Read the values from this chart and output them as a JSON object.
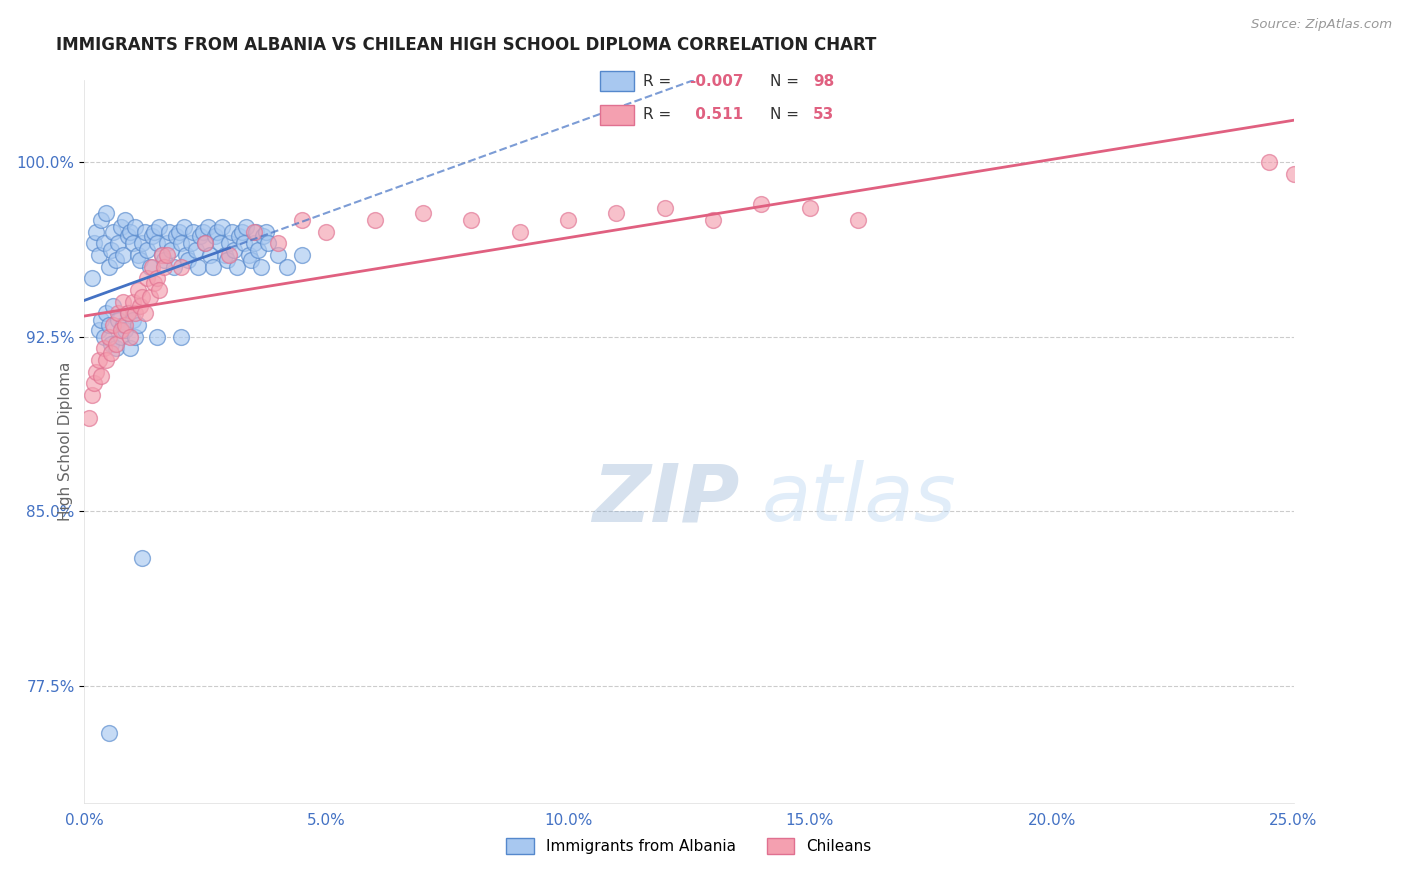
{
  "title": "IMMIGRANTS FROM ALBANIA VS CHILEAN HIGH SCHOOL DIPLOMA CORRELATION CHART",
  "source": "Source: ZipAtlas.com",
  "ylabel": "High School Diploma",
  "legend_label1": "Immigrants from Albania",
  "legend_label2": "Chileans",
  "r1": -0.007,
  "n1": 98,
  "r2": 0.511,
  "n2": 53,
  "xlim": [
    0.0,
    25.0
  ],
  "ylim": [
    72.5,
    103.5
  ],
  "xticks": [
    0.0,
    5.0,
    10.0,
    15.0,
    20.0,
    25.0
  ],
  "xtick_labels": [
    "0.0%",
    "5.0%",
    "10.0%",
    "15.0%",
    "20.0%",
    "25.0%"
  ],
  "yticks": [
    77.5,
    85.0,
    92.5,
    100.0
  ],
  "ytick_labels": [
    "77.5%",
    "85.0%",
    "92.5%",
    "100.0%"
  ],
  "color_albania": "#A8C8F0",
  "color_chilean": "#F4A0B0",
  "color_albania_edge": "#5588CC",
  "color_chilean_edge": "#E07090",
  "color_albania_line": "#4472C4",
  "color_chilean_line": "#E06080",
  "watermark_zip": "ZIP",
  "watermark_atlas": "atlas",
  "background_color": "#FFFFFF",
  "grid_color": "#CCCCCC",
  "title_color": "#222222",
  "axis_label_color": "#666666",
  "tick_color_blue": "#4472C4",
  "legend_r_color": "#E06080",
  "albania_x": [
    0.15,
    0.2,
    0.25,
    0.3,
    0.35,
    0.4,
    0.45,
    0.5,
    0.55,
    0.6,
    0.65,
    0.7,
    0.75,
    0.8,
    0.85,
    0.9,
    0.95,
    1.0,
    1.05,
    1.1,
    1.15,
    1.2,
    1.25,
    1.3,
    1.35,
    1.4,
    1.45,
    1.5,
    1.55,
    1.6,
    1.65,
    1.7,
    1.75,
    1.8,
    1.85,
    1.9,
    1.95,
    2.0,
    2.05,
    2.1,
    2.15,
    2.2,
    2.25,
    2.3,
    2.35,
    2.4,
    2.45,
    2.5,
    2.55,
    2.6,
    2.65,
    2.7,
    2.75,
    2.8,
    2.85,
    2.9,
    2.95,
    3.0,
    3.05,
    3.1,
    3.15,
    3.2,
    3.25,
    3.3,
    3.35,
    3.4,
    3.45,
    3.5,
    3.55,
    3.6,
    3.65,
    3.7,
    3.75,
    3.8,
    4.0,
    4.2,
    4.5,
    0.3,
    0.35,
    0.4,
    0.45,
    0.5,
    0.55,
    0.6,
    0.65,
    0.7,
    0.75,
    0.8,
    0.85,
    0.9,
    0.95,
    1.0,
    1.05,
    1.1,
    1.5,
    2.0,
    1.2,
    0.5
  ],
  "albania_y": [
    95.0,
    96.5,
    97.0,
    96.0,
    97.5,
    96.5,
    97.8,
    95.5,
    96.2,
    97.0,
    95.8,
    96.5,
    97.2,
    96.0,
    97.5,
    96.8,
    97.0,
    96.5,
    97.2,
    96.0,
    95.8,
    96.5,
    97.0,
    96.2,
    95.5,
    96.8,
    97.0,
    96.5,
    97.2,
    96.0,
    95.8,
    96.5,
    97.0,
    96.2,
    95.5,
    96.8,
    97.0,
    96.5,
    97.2,
    96.0,
    95.8,
    96.5,
    97.0,
    96.2,
    95.5,
    96.8,
    97.0,
    96.5,
    97.2,
    96.0,
    95.5,
    96.8,
    97.0,
    96.5,
    97.2,
    96.0,
    95.8,
    96.5,
    97.0,
    96.2,
    95.5,
    96.8,
    97.0,
    96.5,
    97.2,
    96.0,
    95.8,
    96.5,
    97.0,
    96.2,
    95.5,
    96.8,
    97.0,
    96.5,
    96.0,
    95.5,
    96.0,
    92.8,
    93.2,
    92.5,
    93.5,
    93.0,
    92.2,
    93.8,
    92.0,
    93.2,
    92.5,
    93.0,
    92.8,
    93.5,
    92.0,
    93.2,
    92.5,
    93.0,
    92.5,
    92.5,
    83.0,
    75.5
  ],
  "chilean_x": [
    0.1,
    0.15,
    0.2,
    0.25,
    0.3,
    0.35,
    0.4,
    0.45,
    0.5,
    0.55,
    0.6,
    0.65,
    0.7,
    0.75,
    0.8,
    0.85,
    0.9,
    0.95,
    1.0,
    1.05,
    1.1,
    1.15,
    1.2,
    1.25,
    1.3,
    1.35,
    1.4,
    1.45,
    1.5,
    1.55,
    1.6,
    1.65,
    1.7,
    2.0,
    2.5,
    3.0,
    3.5,
    4.0,
    4.5,
    5.0,
    6.0,
    7.0,
    8.0,
    9.0,
    10.0,
    11.0,
    12.0,
    13.0,
    14.0,
    15.0,
    16.0,
    24.5,
    25.0
  ],
  "chilean_y": [
    89.0,
    90.0,
    90.5,
    91.0,
    91.5,
    90.8,
    92.0,
    91.5,
    92.5,
    91.8,
    93.0,
    92.2,
    93.5,
    92.8,
    94.0,
    93.0,
    93.5,
    92.5,
    94.0,
    93.5,
    94.5,
    93.8,
    94.2,
    93.5,
    95.0,
    94.2,
    95.5,
    94.8,
    95.0,
    94.5,
    96.0,
    95.5,
    96.0,
    95.5,
    96.5,
    96.0,
    97.0,
    96.5,
    97.5,
    97.0,
    97.5,
    97.8,
    97.5,
    97.0,
    97.5,
    97.8,
    98.0,
    97.5,
    98.2,
    98.0,
    97.5,
    100.0,
    99.5
  ]
}
